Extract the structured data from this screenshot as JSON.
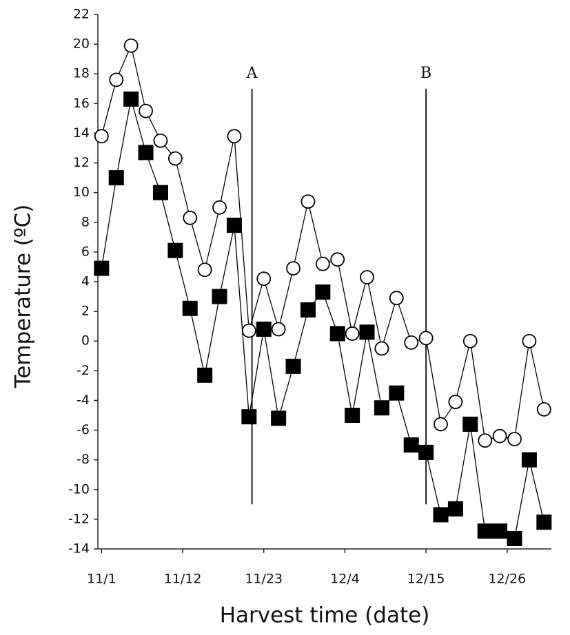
{
  "chart_data": {
    "type": "line",
    "x_label": "Harvest time (date)",
    "y_label": "Temperature (ºC)",
    "xlim": [
      -0.5,
      61
    ],
    "xticks": [
      {
        "value": 0,
        "label": "11/1"
      },
      {
        "value": 11,
        "label": "11/12"
      },
      {
        "value": 22,
        "label": "11/23"
      },
      {
        "value": 33,
        "label": "12/4"
      },
      {
        "value": 44,
        "label": "12/15"
      },
      {
        "value": 55,
        "label": "12/26"
      }
    ],
    "ylim": [
      -14,
      22
    ],
    "yticks": [
      -14,
      -12,
      -10,
      -8,
      -6,
      -4,
      -2,
      0,
      2,
      4,
      6,
      8,
      10,
      12,
      14,
      16,
      18,
      20,
      22
    ],
    "x": [
      0,
      2,
      4,
      6,
      8,
      10,
      12,
      14,
      16,
      18,
      20,
      22,
      24,
      26,
      28,
      30,
      32,
      34,
      36,
      38,
      40,
      42,
      44,
      46,
      48,
      50,
      52,
      54,
      56,
      58,
      60
    ],
    "series": [
      {
        "marker": "circle",
        "color": "#000000",
        "values": [
          13.8,
          17.6,
          19.9,
          15.5,
          13.5,
          12.3,
          8.3,
          4.8,
          9,
          13.8,
          0.7,
          4.2,
          0.8,
          4.9,
          9.4,
          5.2,
          5.5,
          0.5,
          4.3,
          -0.5,
          2.9,
          -0.1,
          0.2,
          -5.6,
          -4.1,
          0,
          -6.7,
          -6.4,
          -6.6,
          0,
          -4.6
        ]
      },
      {
        "marker": "square",
        "color": "#000000",
        "values": [
          4.9,
          11,
          16.3,
          12.7,
          10,
          6.1,
          2.2,
          -2.3,
          3,
          7.8,
          -5.1,
          0.8,
          -5.2,
          -1.7,
          2.1,
          3.3,
          0.5,
          -5,
          0.6,
          -4.5,
          -3.5,
          -7,
          -7.5,
          -11.7,
          -11.3,
          -5.6,
          -12.8,
          -12.8,
          -13.3,
          -8,
          -12.2
        ]
      }
    ],
    "annotations": [
      {
        "text": "A",
        "x": 20.4,
        "y_top": 17,
        "y_bottom": -11
      },
      {
        "text": "B",
        "x": 44,
        "y_top": 17,
        "y_bottom": -11
      }
    ]
  }
}
